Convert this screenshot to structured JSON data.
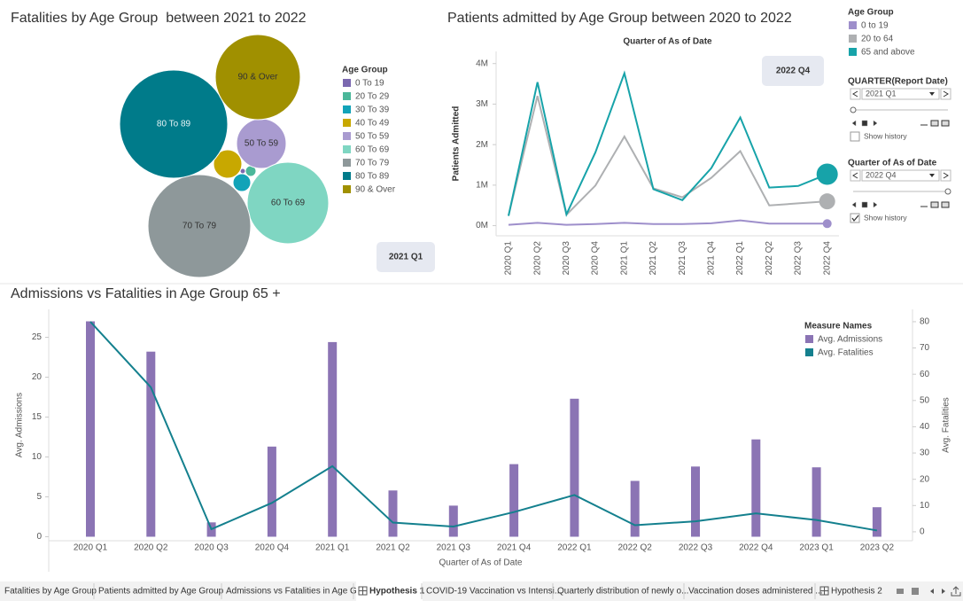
{
  "chart_data": [
    {
      "type": "bubble",
      "title": "Fatalities by Age Group  between 2021 to 2022",
      "legend_title": "Age Group",
      "categories": [
        "0 To 19",
        "20 To 29",
        "30 To 39",
        "40 To 49",
        "50 To 59",
        "60 To 69",
        "70 To 79",
        "80 To 89",
        "90 & Over"
      ],
      "values": [
        9,
        36,
        100,
        256,
        784,
        2116,
        3364,
        3721,
        2304
      ],
      "colors": [
        "#7b68b0",
        "#4bb79a",
        "#12a3b8",
        "#c8a800",
        "#a99bd0",
        "#7fd6c2",
        "#8e989a",
        "#007b8a",
        "#a09000"
      ],
      "annotation": "2021 Q1"
    },
    {
      "type": "line",
      "title": "Patients admitted by Age Group between 2020 to 2022",
      "subtitle": "Quarter of As of Date",
      "y_label": "Patients Admitted",
      "legend_title": "Age Group",
      "categories": [
        "2020 Q1",
        "2020 Q2",
        "2020 Q3",
        "2020 Q4",
        "2021 Q1",
        "2021 Q2",
        "2021 Q3",
        "2021 Q4",
        "2022 Q1",
        "2022 Q2",
        "2022 Q3",
        "2022 Q4"
      ],
      "series": [
        {
          "name": "0 to 19",
          "color": "#9e8fcb",
          "values": [
            20000,
            70000,
            20000,
            40000,
            70000,
            40000,
            40000,
            60000,
            130000,
            50000,
            50000,
            50000
          ]
        },
        {
          "name": "20 to 64",
          "color": "#aeb0b2",
          "values": [
            250000,
            3200000,
            270000,
            990000,
            2200000,
            920000,
            700000,
            1180000,
            1840000,
            500000,
            550000,
            600000
          ]
        },
        {
          "name": "65 and above",
          "color": "#17a3a9",
          "values": [
            240000,
            3540000,
            280000,
            1810000,
            3760000,
            900000,
            630000,
            1420000,
            2670000,
            940000,
            980000,
            1270000
          ]
        }
      ],
      "ylim": [
        -250000,
        4300000
      ],
      "yticks": [
        {
          "value": 0,
          "label": "0M"
        },
        {
          "value": 1000000,
          "label": "1M"
        },
        {
          "value": 2000000,
          "label": "2M"
        },
        {
          "value": 3000000,
          "label": "3M"
        },
        {
          "value": 4000000,
          "label": "4M"
        }
      ],
      "annotation": "2022 Q4"
    },
    {
      "type": "bar_line",
      "title": "Admissions vs Fatalities in Age Group 65 +",
      "x_label": "Quarter of As of Date",
      "y_label": "Avg. Admissions",
      "y2_label": "Avg. Fatalities",
      "legend_title": "Measure Names",
      "categories": [
        "2020 Q1",
        "2020 Q2",
        "2020 Q3",
        "2020 Q4",
        "2021 Q1",
        "2021 Q2",
        "2021 Q3",
        "2021 Q4",
        "2022 Q1",
        "2022 Q2",
        "2022 Q3",
        "2022 Q4",
        "2023 Q1",
        "2023 Q2"
      ],
      "series": [
        {
          "name": "Avg. Admissions",
          "color": "#8b74b4",
          "values": [
            27.0,
            23.2,
            1.8,
            11.3,
            24.4,
            5.8,
            3.9,
            9.1,
            17.3,
            7.0,
            8.8,
            12.2,
            8.7,
            3.7
          ]
        },
        {
          "name": "Avg. Fatalities",
          "color": "#14808e",
          "axis": "y2",
          "values": [
            80,
            55,
            1,
            11,
            25,
            3.5,
            2,
            7.5,
            14,
            2.5,
            4,
            7,
            4.5,
            0.5
          ]
        }
      ],
      "ylim": [
        -0.5,
        28.5
      ],
      "yticks": [
        0,
        5,
        10,
        15,
        20,
        25
      ],
      "y2lim": [
        -3.4,
        84.7
      ],
      "y2ticks": [
        0,
        10,
        20,
        30,
        40,
        50,
        60,
        70,
        80
      ]
    }
  ],
  "filters": [
    {
      "title": "QUARTER(Report Date)",
      "value": "2021 Q1",
      "history_label": "Show history",
      "history_checked": false
    },
    {
      "title": "Quarter of As of Date",
      "value": "2022 Q4",
      "history_label": "Show history",
      "history_checked": true
    }
  ],
  "tabs": [
    {
      "label": "Fatalities by Age Group",
      "selected": false,
      "dashboard": false
    },
    {
      "label": "Patients admitted by Age Group",
      "selected": false,
      "dashboard": false
    },
    {
      "label": "Admissions vs Fatalities in Age G...",
      "selected": false,
      "dashboard": false
    },
    {
      "label": "Hypothesis 1",
      "selected": true,
      "dashboard": true
    },
    {
      "label": "COVID-19 Vaccination vs Intensi...",
      "selected": false,
      "dashboard": false
    },
    {
      "label": "Quarterly distribution of newly o...",
      "selected": false,
      "dashboard": false
    },
    {
      "label": "Vaccination doses administered ...",
      "selected": false,
      "dashboard": false
    },
    {
      "label": "Hypothesis 2",
      "selected": false,
      "dashboard": true
    }
  ]
}
